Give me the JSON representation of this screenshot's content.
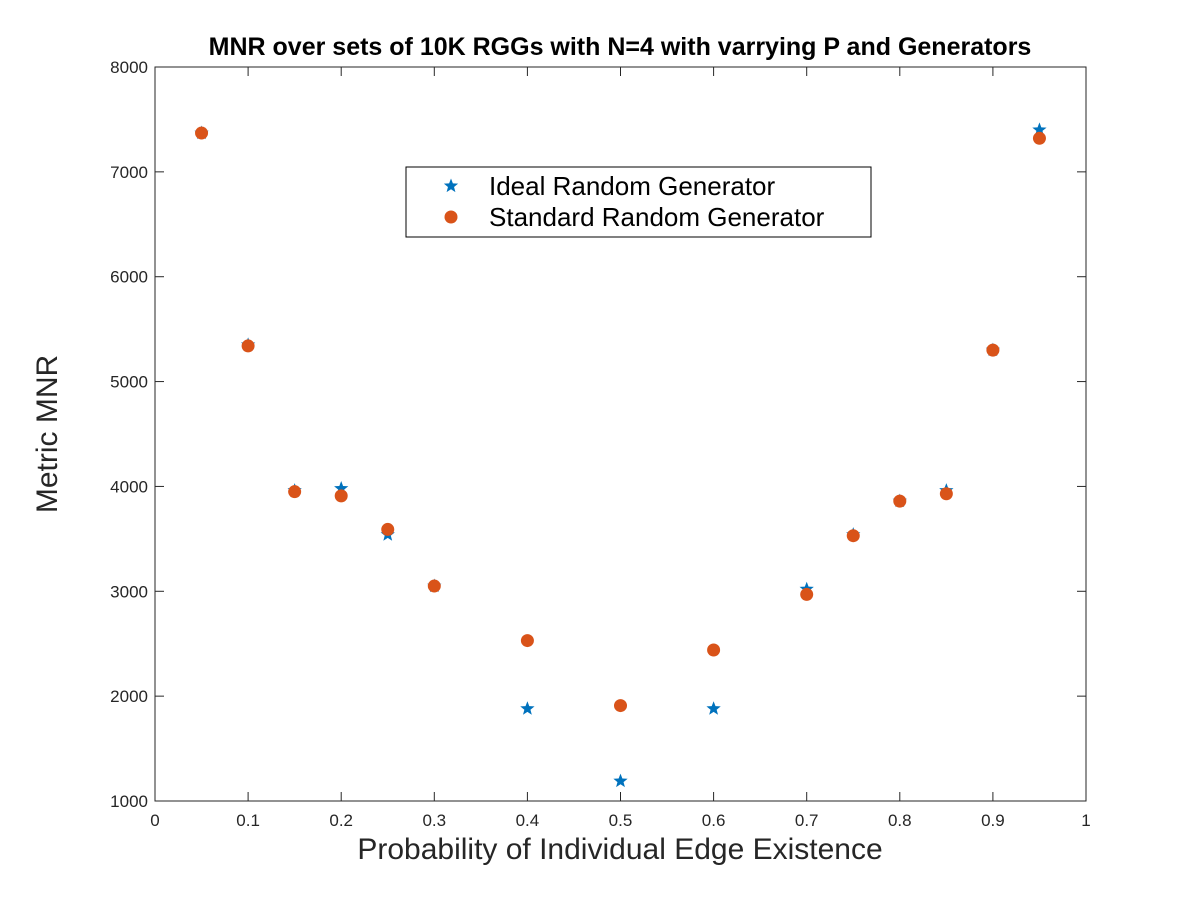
{
  "chart_data": {
    "type": "scatter",
    "title": "MNR over sets of 10K RGGs with N=4 with varrying P and Generators",
    "xlabel": "Probability of Individual Edge Existence",
    "ylabel": "Metric MNR",
    "xlim": [
      0,
      1
    ],
    "ylim": [
      1000,
      8000
    ],
    "xticks": [
      "0",
      "0.1",
      "0.2",
      "0.3",
      "0.4",
      "0.5",
      "0.6",
      "0.7",
      "0.8",
      "0.9",
      "1"
    ],
    "yticks": [
      "1000",
      "2000",
      "3000",
      "4000",
      "5000",
      "6000",
      "7000",
      "8000"
    ],
    "grid": false,
    "legend_position": "upper-center",
    "series": [
      {
        "name": "Ideal Random Generator",
        "marker": "star-icon",
        "color": "#0072BD",
        "x": [
          0.05,
          0.1,
          0.15,
          0.2,
          0.25,
          0.3,
          0.4,
          0.5,
          0.6,
          0.7,
          0.75,
          0.8,
          0.85,
          0.9,
          0.95
        ],
        "y": [
          7370,
          5350,
          3960,
          3980,
          3540,
          3050,
          1880,
          1190,
          1880,
          3020,
          3540,
          3860,
          3960,
          5300,
          7400
        ]
      },
      {
        "name": "Standard Random Generator",
        "marker": "circle-icon",
        "color": "#D95319",
        "x": [
          0.05,
          0.1,
          0.15,
          0.2,
          0.25,
          0.3,
          0.4,
          0.5,
          0.6,
          0.7,
          0.75,
          0.8,
          0.85,
          0.9,
          0.95
        ],
        "y": [
          7370,
          5340,
          3950,
          3910,
          3590,
          3050,
          2530,
          1910,
          2440,
          2970,
          3530,
          3860,
          3930,
          5300,
          7320
        ]
      }
    ]
  }
}
